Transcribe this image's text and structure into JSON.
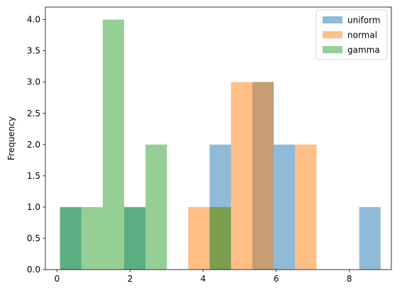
{
  "chart_data": {
    "type": "bar",
    "title": "",
    "xlabel": "",
    "ylabel": "Frequency",
    "xlim": [
      -0.32,
      9.15
    ],
    "ylim": [
      0.0,
      4.2
    ],
    "xticks": [
      0,
      2,
      4,
      6,
      8
    ],
    "yticks": [
      0.0,
      0.5,
      1.0,
      1.5,
      2.0,
      2.5,
      3.0,
      3.5,
      4.0
    ],
    "xtick_labels": [
      "0",
      "2",
      "4",
      "6",
      "8"
    ],
    "ytick_labels": [
      "0.0",
      "0.5",
      "1.0",
      "1.5",
      "2.0",
      "2.5",
      "3.0",
      "3.5",
      "4.0"
    ],
    "bin_width": 0.585,
    "bin_edges": [
      0.08,
      0.665,
      1.25,
      1.835,
      2.42,
      3.005,
      3.59,
      4.175,
      4.76,
      5.345,
      5.93,
      6.515,
      7.1,
      7.685,
      8.27,
      8.855
    ],
    "alpha": 0.5,
    "legend": {
      "position": "upper-right",
      "entries": [
        "uniform",
        "normal",
        "gamma"
      ]
    },
    "series": [
      {
        "name": "uniform",
        "color": "#1f77b4",
        "bins": [
          {
            "x0": 0.08,
            "x1": 0.665,
            "count": 1
          },
          {
            "x0": 1.835,
            "x1": 2.42,
            "count": 1
          },
          {
            "x0": 4.175,
            "x1": 4.76,
            "count": 2
          },
          {
            "x0": 5.345,
            "x1": 5.93,
            "count": 3
          },
          {
            "x0": 5.93,
            "x1": 6.515,
            "count": 2
          },
          {
            "x0": 8.27,
            "x1": 8.855,
            "count": 1
          }
        ]
      },
      {
        "name": "normal",
        "color": "#ff7f0e",
        "bins": [
          {
            "x0": 3.59,
            "x1": 4.175,
            "count": 1
          },
          {
            "x0": 4.175,
            "x1": 4.76,
            "count": 1
          },
          {
            "x0": 4.76,
            "x1": 5.345,
            "count": 3
          },
          {
            "x0": 5.345,
            "x1": 5.93,
            "count": 3
          },
          {
            "x0": 6.515,
            "x1": 7.1,
            "count": 2
          }
        ]
      },
      {
        "name": "gamma",
        "color": "#2ca02c",
        "bins": [
          {
            "x0": 0.08,
            "x1": 0.665,
            "count": 1
          },
          {
            "x0": 0.665,
            "x1": 1.25,
            "count": 1
          },
          {
            "x0": 1.25,
            "x1": 1.835,
            "count": 4
          },
          {
            "x0": 1.835,
            "x1": 2.42,
            "count": 1
          },
          {
            "x0": 2.42,
            "x1": 3.005,
            "count": 2
          },
          {
            "x0": 4.175,
            "x1": 4.76,
            "count": 1
          }
        ]
      }
    ]
  }
}
